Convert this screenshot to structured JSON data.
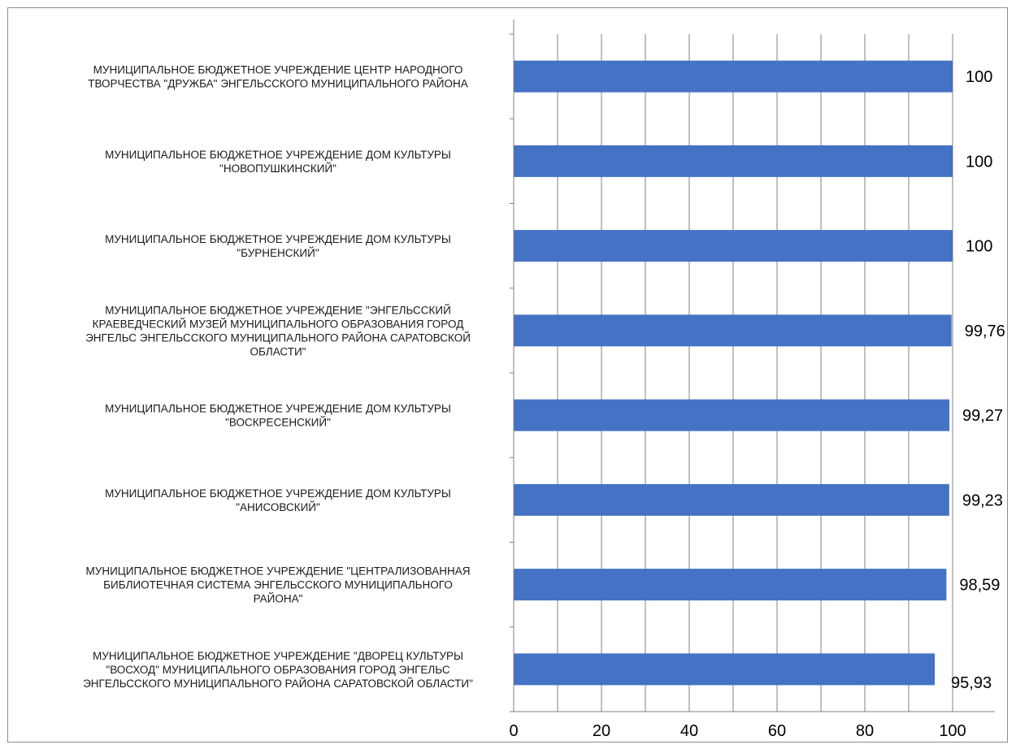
{
  "chart_data": {
    "type": "bar",
    "orientation": "horizontal",
    "categories": [
      "МУНИЦИПАЛЬНОЕ БЮДЖЕТНОЕ УЧРЕЖДЕНИЕ ЦЕНТР НАРОДНОГО ТВОРЧЕСТВА \"ДРУЖБА\" ЭНГЕЛЬССКОГО МУНИЦИПАЛЬНОГО РАЙОНА",
      "МУНИЦИПАЛЬНОЕ БЮДЖЕТНОЕ УЧРЕЖДЕНИЕ ДОМ КУЛЬТУРЫ \"НОВОПУШКИНСКИЙ\"",
      "МУНИЦИПАЛЬНОЕ БЮДЖЕТНОЕ УЧРЕЖДЕНИЕ ДОМ КУЛЬТУРЫ \"БУРНЕНСКИЙ\"",
      "МУНИЦИПАЛЬНОЕ БЮДЖЕТНОЕ УЧРЕЖДЕНИЕ \"ЭНГЕЛЬССКИЙ КРАЕВЕДЧЕСКИЙ МУЗЕЙ МУНИЦИПАЛЬНОГО ОБРАЗОВАНИЯ ГОРОД ЭНГЕЛЬС ЭНГЕЛЬССКОГО МУНИЦИПАЛЬНОГО РАЙОНА САРАТОВСКОЙ ОБЛАСТИ\"",
      "МУНИЦИПАЛЬНОЕ БЮДЖЕТНОЕ УЧРЕЖДЕНИЕ ДОМ КУЛЬТУРЫ \"ВОСКРЕСЕНСКИЙ\"",
      "МУНИЦИПАЛЬНОЕ БЮДЖЕТНОЕ УЧРЕЖДЕНИЕ ДОМ КУЛЬТУРЫ \"АНИСОВСКИЙ\"",
      "МУНИЦИПАЛЬНОЕ БЮДЖЕТНОЕ УЧРЕЖДЕНИЕ \"ЦЕНТРАЛИЗОВАННАЯ БИБЛИОТЕЧНАЯ СИСТЕМА ЭНГЕЛЬССКОГО МУНИЦИПАЛЬНОГО РАЙОНА\"",
      "МУНИЦИПАЛЬНОЕ БЮДЖЕТНОЕ УЧРЕЖДЕНИЕ \"ДВОРЕЦ КУЛЬТУРЫ \"ВОСХОД\" МУНИЦИПАЛЬНОГО ОБРАЗОВАНИЯ ГОРОД ЭНГЕЛЬС ЭНГЕЛЬССКОГО МУНИЦИПАЛЬНОГО РАЙОНА САРАТОВСКОЙ ОБЛАСТИ\""
    ],
    "category_lines": [
      [
        "МУНИЦИПАЛЬНОЕ БЮДЖЕТНОЕ УЧРЕЖДЕНИЕ ЦЕНТР НАРОДНОГО",
        "ТВОРЧЕСТВА \"ДРУЖБА\" ЭНГЕЛЬССКОГО МУНИЦИПАЛЬНОГО РАЙОНА"
      ],
      [
        "МУНИЦИПАЛЬНОЕ БЮДЖЕТНОЕ УЧРЕЖДЕНИЕ ДОМ КУЛЬТУРЫ",
        "\"НОВОПУШКИНСКИЙ\""
      ],
      [
        "МУНИЦИПАЛЬНОЕ БЮДЖЕТНОЕ УЧРЕЖДЕНИЕ ДОМ КУЛЬТУРЫ",
        "\"БУРНЕНСКИЙ\""
      ],
      [
        "МУНИЦИПАЛЬНОЕ БЮДЖЕТНОЕ УЧРЕЖДЕНИЕ \"ЭНГЕЛЬССКИЙ",
        "КРАЕВЕДЧЕСКИЙ МУЗЕЙ МУНИЦИПАЛЬНОГО ОБРАЗОВАНИЯ ГОРОД",
        "ЭНГЕЛЬС ЭНГЕЛЬССКОГО МУНИЦИПАЛЬНОГО РАЙОНА САРАТОВСКОЙ",
        "ОБЛАСТИ\""
      ],
      [
        "МУНИЦИПАЛЬНОЕ БЮДЖЕТНОЕ УЧРЕЖДЕНИЕ ДОМ КУЛЬТУРЫ",
        "\"ВОСКРЕСЕНСКИЙ\""
      ],
      [
        "МУНИЦИПАЛЬНОЕ БЮДЖЕТНОЕ УЧРЕЖДЕНИЕ ДОМ КУЛЬТУРЫ",
        "\"АНИСОВСКИЙ\""
      ],
      [
        "МУНИЦИПАЛЬНОЕ БЮДЖЕТНОЕ УЧРЕЖДЕНИЕ \"ЦЕНТРАЛИЗОВАННАЯ",
        "БИБЛИОТЕЧНАЯ СИСТЕМА ЭНГЕЛЬССКОГО МУНИЦИПАЛЬНОГО",
        "РАЙОНА\""
      ],
      [
        "МУНИЦИПАЛЬНОЕ БЮДЖЕТНОЕ УЧРЕЖДЕНИЕ \"ДВОРЕЦ КУЛЬТУРЫ",
        "\"ВОСХОД\" МУНИЦИПАЛЬНОГО ОБРАЗОВАНИЯ ГОРОД ЭНГЕЛЬС",
        "ЭНГЕЛЬССКОГО МУНИЦИПАЛЬНОГО РАЙОНА САРАТОВСКОЙ ОБЛАСТИ\""
      ]
    ],
    "values": [
      100,
      100,
      100,
      99.76,
      99.27,
      99.23,
      98.59,
      95.93
    ],
    "value_labels": [
      "100",
      "100",
      "100",
      "99,76",
      "99,27",
      "99,23",
      "98,59",
      "95,93"
    ],
    "x_ticks": [
      0,
      20,
      40,
      60,
      80,
      100
    ],
    "x_tick_labels": [
      "0",
      "20",
      "40",
      "60",
      "80",
      "100"
    ],
    "xlim": [
      0,
      110
    ],
    "title": "",
    "xlabel": "",
    "ylabel": "",
    "grid": "vertical",
    "legend": "none",
    "bar_color": "#4472C4",
    "grid_color": "#808080",
    "axis_color": "#808080"
  }
}
